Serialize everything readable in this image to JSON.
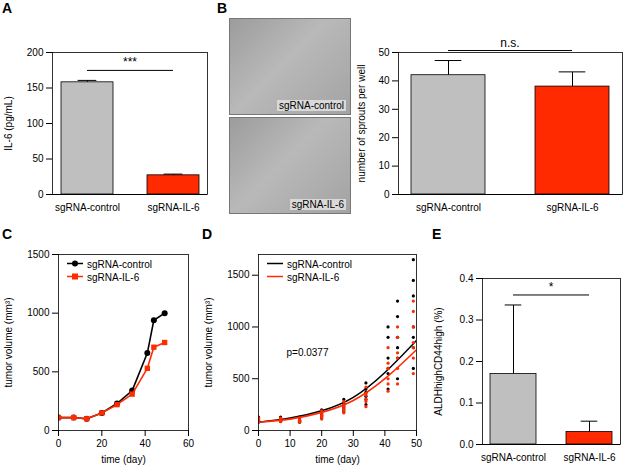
{
  "chart_data": [
    {
      "panel": "A",
      "type": "bar",
      "categories": [
        "sgRNA-control",
        "sgRNA-IL-6"
      ],
      "values": [
        158,
        27
      ],
      "errors": [
        2,
        1
      ],
      "colors": [
        "#bfbfbf",
        "#ff2a00"
      ],
      "ylabel": "IL-6 (pg/mL)",
      "ylim": [
        0,
        200
      ],
      "yticks": [
        0,
        50,
        100,
        150,
        200
      ],
      "annotation": "***"
    },
    {
      "panel": "B",
      "type": "bar",
      "images": [
        "sgRNA-control",
        "sgRNA-IL-6"
      ],
      "categories": [
        "sgRNA-control",
        "sgRNA-IL-6"
      ],
      "values": [
        42,
        38
      ],
      "errors": [
        5,
        5
      ],
      "colors": [
        "#bfbfbf",
        "#ff2a00"
      ],
      "ylabel": "number of sprouts per well",
      "ylim": [
        0,
        50
      ],
      "yticks": [
        0,
        10,
        20,
        30,
        40,
        50
      ],
      "annotation": "n.s."
    },
    {
      "panel": "C",
      "type": "line",
      "xlabel": "time (day)",
      "ylabel": "tumor volume (mm³)",
      "xlim": [
        0,
        60
      ],
      "xticks": [
        0,
        20,
        40,
        60
      ],
      "ylim": [
        0,
        1500
      ],
      "yticks": [
        0,
        500,
        1000,
        1500
      ],
      "legend": "top-left",
      "series": [
        {
          "name": "sgRNA-control",
          "color": "#000000",
          "marker": "circle",
          "x": [
            0,
            7,
            13,
            20,
            27,
            34,
            41,
            44,
            49
          ],
          "values": [
            110,
            110,
            100,
            150,
            230,
            340,
            660,
            940,
            1000
          ]
        },
        {
          "name": "sgRNA-IL-6",
          "color": "#ff2a00",
          "marker": "square",
          "x": [
            0,
            7,
            13,
            20,
            27,
            34,
            41,
            44,
            49
          ],
          "values": [
            110,
            110,
            100,
            150,
            220,
            310,
            530,
            710,
            750
          ]
        }
      ]
    },
    {
      "panel": "D",
      "type": "scatter",
      "xlabel": "time (day)",
      "ylabel": "tumor volume (mm³)",
      "xlim": [
        0,
        50
      ],
      "xticks": [
        0,
        10,
        20,
        30,
        40,
        50
      ],
      "ylim": [
        0,
        1700
      ],
      "yticks": [
        0,
        500,
        1000,
        1500
      ],
      "legend": "top-left",
      "annotation": "p=0.0377",
      "series": [
        {
          "name": "sgRNA-control",
          "color": "#000000",
          "x": [
            0,
            0,
            0,
            0,
            0,
            0,
            7,
            7,
            7,
            7,
            7,
            7,
            13,
            13,
            13,
            13,
            13,
            13,
            20,
            20,
            20,
            20,
            20,
            20,
            27,
            27,
            27,
            27,
            27,
            27,
            34,
            34,
            34,
            34,
            34,
            34,
            41,
            41,
            41,
            41,
            41,
            41,
            44,
            44,
            44,
            44,
            44,
            44,
            49,
            49,
            49,
            49,
            49,
            49,
            49
          ],
          "values": [
            90,
            100,
            110,
            120,
            130,
            80,
            90,
            100,
            120,
            110,
            130,
            95,
            80,
            100,
            110,
            130,
            90,
            120,
            120,
            150,
            180,
            200,
            140,
            170,
            180,
            220,
            260,
            300,
            240,
            200,
            250,
            330,
            400,
            460,
            300,
            370,
            400,
            550,
            700,
            900,
            1000,
            600,
            500,
            700,
            900,
            1100,
            1250,
            800,
            600,
            800,
            1000,
            1300,
            1450,
            1650,
            900
          ],
          "fit_x": [
            0,
            10,
            20,
            30,
            40,
            50
          ],
          "fit_values": [
            80,
            120,
            190,
            320,
            560,
            870
          ]
        },
        {
          "name": "sgRNA-IL-6",
          "color": "#ff2a00",
          "x": [
            0,
            0,
            0,
            0,
            0,
            0,
            7,
            7,
            7,
            7,
            7,
            7,
            13,
            13,
            13,
            13,
            13,
            13,
            20,
            20,
            20,
            20,
            20,
            20,
            27,
            27,
            27,
            27,
            27,
            27,
            34,
            34,
            34,
            34,
            34,
            34,
            41,
            41,
            41,
            41,
            41,
            41,
            44,
            44,
            44,
            44,
            44,
            44,
            49,
            49,
            49,
            49,
            49,
            49,
            49
          ],
          "values": [
            95,
            105,
            115,
            125,
            85,
            100,
            85,
            100,
            110,
            120,
            105,
            90,
            90,
            100,
            120,
            80,
            110,
            95,
            110,
            140,
            160,
            190,
            130,
            150,
            170,
            210,
            250,
            280,
            230,
            190,
            230,
            300,
            360,
            420,
            280,
            340,
            380,
            500,
            600,
            800,
            650,
            450,
            450,
            600,
            750,
            900,
            1000,
            700,
            550,
            700,
            850,
            1000,
            1150,
            1250,
            800
          ],
          "fit_x": [
            0,
            10,
            20,
            30,
            40,
            50
          ],
          "fit_values": [
            80,
            110,
            175,
            290,
            500,
            780
          ]
        }
      ]
    },
    {
      "panel": "E",
      "type": "bar",
      "categories": [
        "sgRNA-control",
        "sgRNA-IL-6"
      ],
      "values": [
        0.17,
        0.03
      ],
      "errors": [
        0.165,
        0.025
      ],
      "colors": [
        "#bfbfbf",
        "#ff2a00"
      ],
      "ylabel": "ALDHhighCD44high (%)",
      "ylim": [
        0,
        0.4
      ],
      "yticks": [
        {
          "value": 0,
          "label": "0.0"
        },
        0.1,
        0.2,
        0.3,
        0.4
      ],
      "annotation": "*"
    }
  ]
}
